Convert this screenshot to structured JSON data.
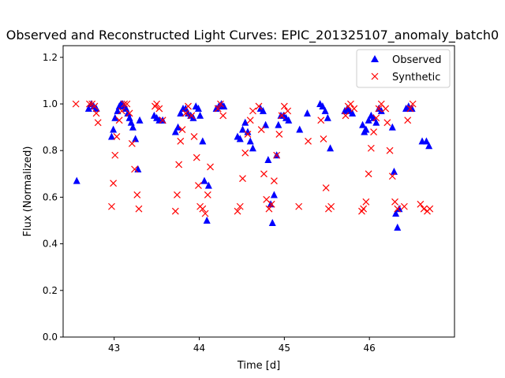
{
  "chart_data": {
    "type": "scatter",
    "title": "Observed and Reconstructed Light Curves: EPIC_201325107_anomaly_batch0",
    "xlabel": "Time [d]",
    "ylabel": "Flux (Normalized)",
    "xlim": [
      42.4,
      47.0
    ],
    "ylim": [
      0.0,
      1.25
    ],
    "xticks": [
      43,
      44,
      45,
      46
    ],
    "yticks": [
      0.0,
      0.2,
      0.4,
      0.6,
      0.8,
      1.0,
      1.2
    ],
    "legend_position": "top-right",
    "grid": false,
    "series": [
      {
        "name": "Observed",
        "marker": "triangle",
        "color": "#0000ff",
        "x": [
          42.56,
          42.7,
          42.73,
          42.76,
          42.79,
          42.97,
          42.99,
          43.01,
          43.04,
          43.06,
          43.08,
          43.1,
          43.12,
          43.14,
          43.16,
          43.18,
          43.2,
          43.22,
          43.25,
          43.28,
          43.3,
          43.47,
          43.5,
          43.53,
          43.57,
          43.72,
          43.75,
          43.78,
          43.81,
          43.84,
          43.87,
          43.9,
          43.93,
          43.96,
          43.99,
          44.01,
          44.04,
          44.06,
          44.09,
          44.11,
          44.2,
          44.23,
          44.26,
          44.29,
          44.45,
          44.48,
          44.51,
          44.54,
          44.57,
          44.6,
          44.63,
          44.72,
          44.75,
          44.78,
          44.81,
          44.84,
          44.86,
          44.88,
          44.91,
          44.93,
          44.96,
          44.99,
          45.02,
          45.05,
          45.18,
          45.27,
          45.42,
          45.45,
          45.48,
          45.51,
          45.54,
          45.71,
          45.74,
          45.77,
          45.8,
          45.92,
          45.94,
          45.96,
          45.99,
          46.02,
          46.05,
          46.08,
          46.11,
          46.14,
          46.27,
          46.29,
          46.31,
          46.33,
          46.35,
          46.43,
          46.46,
          46.5,
          46.62,
          46.67,
          46.7
        ],
        "y": [
          0.67,
          0.98,
          1.0,
          0.99,
          0.98,
          0.86,
          0.89,
          0.94,
          0.97,
          0.99,
          1.0,
          1.0,
          0.99,
          0.98,
          0.96,
          0.94,
          0.92,
          0.9,
          0.85,
          0.72,
          0.93,
          0.95,
          0.94,
          0.93,
          0.93,
          0.88,
          0.9,
          0.96,
          0.98,
          0.98,
          0.96,
          0.95,
          0.94,
          0.99,
          0.98,
          0.95,
          0.84,
          0.67,
          0.5,
          0.65,
          0.98,
          0.99,
          1.0,
          0.99,
          0.86,
          0.85,
          0.89,
          0.92,
          0.88,
          0.84,
          0.81,
          0.98,
          0.97,
          0.91,
          0.76,
          0.57,
          0.49,
          0.61,
          0.78,
          0.91,
          0.95,
          0.95,
          0.94,
          0.93,
          0.89,
          0.96,
          1.0,
          0.99,
          0.97,
          0.94,
          0.81,
          0.97,
          0.98,
          0.97,
          0.96,
          0.91,
          0.88,
          0.89,
          0.93,
          0.95,
          0.94,
          0.92,
          0.98,
          0.97,
          0.9,
          0.71,
          0.53,
          0.47,
          0.55,
          0.98,
          0.99,
          0.98,
          0.84,
          0.84,
          0.82
        ]
      },
      {
        "name": "Synthetic",
        "marker": "x",
        "color": "#ff0000",
        "x": [
          42.55,
          42.71,
          42.74,
          42.77,
          42.79,
          42.81,
          42.97,
          42.99,
          43.01,
          43.03,
          43.06,
          43.09,
          43.12,
          43.15,
          43.18,
          43.21,
          43.24,
          43.27,
          43.29,
          43.48,
          43.5,
          43.53,
          43.57,
          43.72,
          43.74,
          43.76,
          43.78,
          43.8,
          43.84,
          43.87,
          43.91,
          43.94,
          43.97,
          43.99,
          44.01,
          44.04,
          44.07,
          44.1,
          44.13,
          44.22,
          44.25,
          44.28,
          44.45,
          44.48,
          44.51,
          44.54,
          44.57,
          44.6,
          44.63,
          44.7,
          44.73,
          44.76,
          44.79,
          44.82,
          44.85,
          44.88,
          44.91,
          44.94,
          44.97,
          45.0,
          45.04,
          45.17,
          45.28,
          45.43,
          45.46,
          45.49,
          45.52,
          45.55,
          45.72,
          45.75,
          45.78,
          45.82,
          45.91,
          45.93,
          45.96,
          45.99,
          46.02,
          46.05,
          46.08,
          46.11,
          46.14,
          46.19,
          46.21,
          46.24,
          46.27,
          46.3,
          46.33,
          46.41,
          46.45,
          46.48,
          46.51,
          46.6,
          46.64,
          46.68,
          46.71
        ],
        "y": [
          1.0,
          1.0,
          1.0,
          0.99,
          0.96,
          0.92,
          0.56,
          0.66,
          0.78,
          0.86,
          0.93,
          0.97,
          1.0,
          1.0,
          0.96,
          0.83,
          0.72,
          0.61,
          0.55,
          0.99,
          1.0,
          0.98,
          0.93,
          0.54,
          0.61,
          0.74,
          0.84,
          0.89,
          0.96,
          0.99,
          0.95,
          0.86,
          0.77,
          0.65,
          0.56,
          0.55,
          0.53,
          0.61,
          0.73,
          0.98,
          1.0,
          0.95,
          0.54,
          0.56,
          0.68,
          0.79,
          0.87,
          0.93,
          0.97,
          0.99,
          0.89,
          0.7,
          0.59,
          0.55,
          0.57,
          0.67,
          0.78,
          0.87,
          0.95,
          0.99,
          0.97,
          0.56,
          0.84,
          0.93,
          0.85,
          0.64,
          0.55,
          0.56,
          0.95,
          0.99,
          1.0,
          0.98,
          0.54,
          0.55,
          0.58,
          0.7,
          0.81,
          0.88,
          0.94,
          0.98,
          1.0,
          0.98,
          0.92,
          0.8,
          0.69,
          0.58,
          0.55,
          0.56,
          0.93,
          0.98,
          1.0,
          0.57,
          0.55,
          0.54,
          0.55
        ]
      }
    ]
  }
}
